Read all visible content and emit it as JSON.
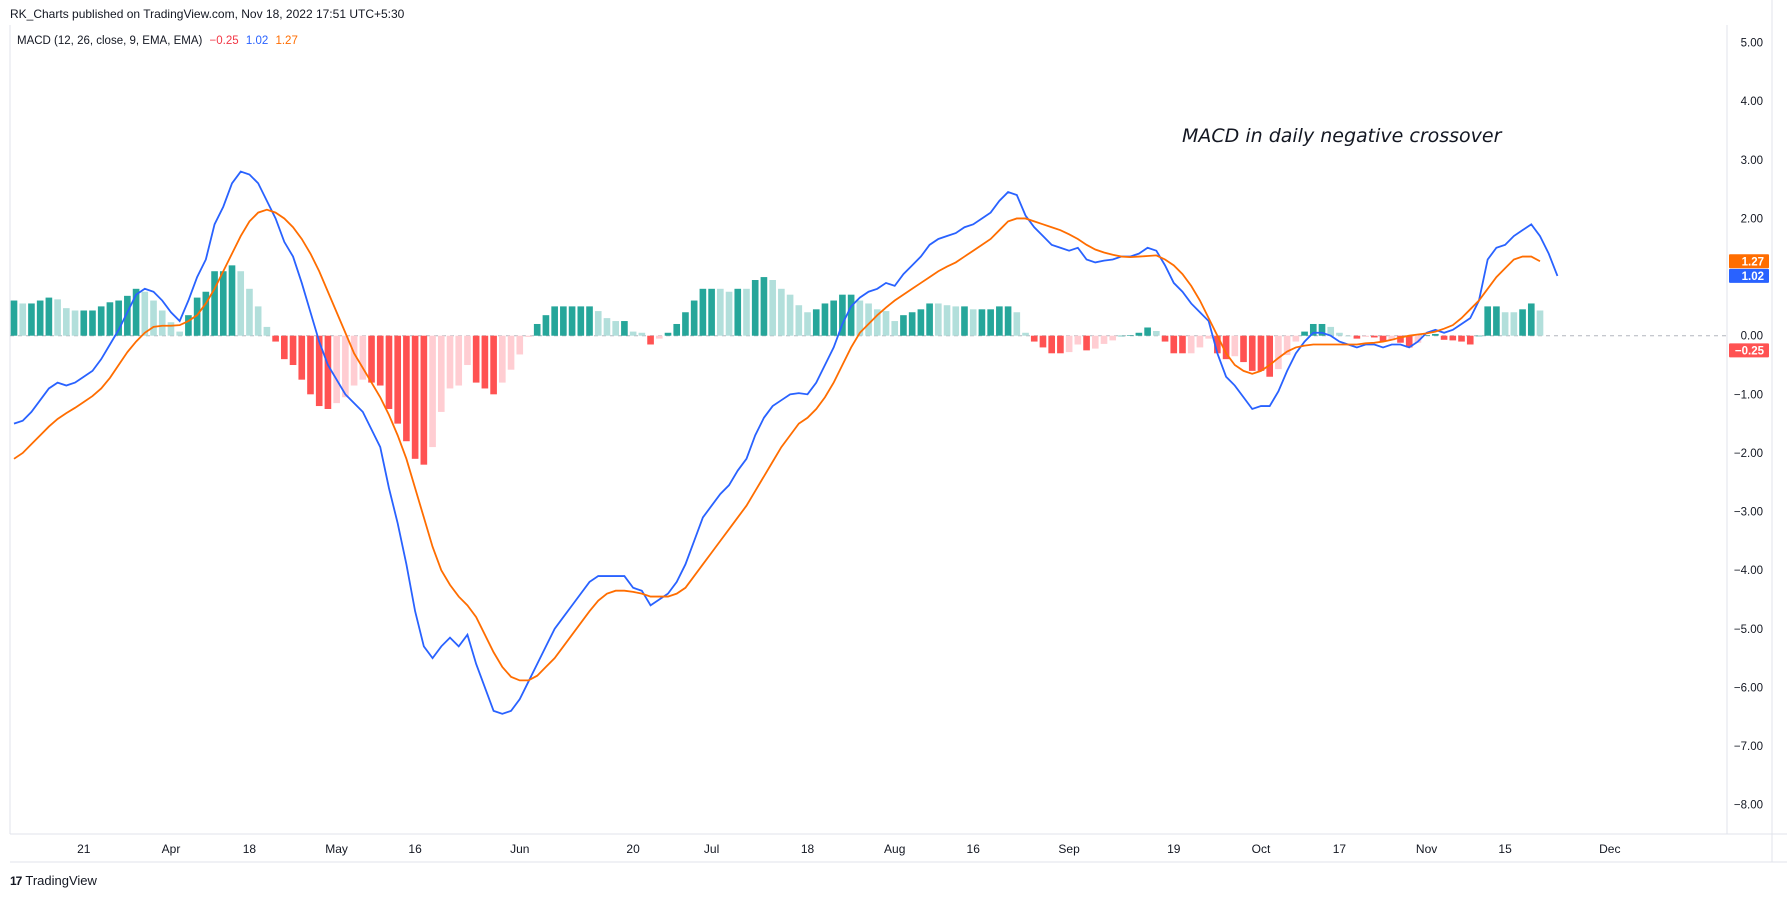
{
  "header": {
    "publisher": "RK_Charts published on TradingView.com, Nov 18, 2022 17:51 UTC+5:30"
  },
  "legend": {
    "indicator": "MACD (12, 26, close, 9, EMA, EMA)",
    "histogram_value": "−0.25",
    "macd_value": "1.02",
    "signal_value": "1.27"
  },
  "annotation": "MACD in daily negative crossover",
  "footer": {
    "brand": "TradingView",
    "logo": "tradingview-logo-icon"
  },
  "colors": {
    "macd": "#2962ff",
    "signal": "#ff6d00",
    "hist_pos_strong": "#26a69a",
    "hist_pos_weak": "#b2dfdb",
    "hist_neg_strong": "#ff5252",
    "hist_neg_weak": "#ffcdd2"
  },
  "chart_data": {
    "type": "line",
    "ylim": [
      -8.5,
      5.3
    ],
    "y_ticks": [
      "5.00",
      "4.00",
      "3.00",
      "2.00",
      "1.00",
      "0.00",
      "−1.00",
      "−2.00",
      "−3.00",
      "−4.00",
      "−5.00",
      "−6.00",
      "−7.00",
      "−8.00"
    ],
    "x_tick_labels": [
      {
        "label": "21",
        "bar": 8
      },
      {
        "label": "Apr",
        "bar": 18
      },
      {
        "label": "18",
        "bar": 27
      },
      {
        "label": "May",
        "bar": 37
      },
      {
        "label": "16",
        "bar": 46
      },
      {
        "label": "Jun",
        "bar": 58
      },
      {
        "label": "20",
        "bar": 71
      },
      {
        "label": "Jul",
        "bar": 80
      },
      {
        "label": "18",
        "bar": 91
      },
      {
        "label": "Aug",
        "bar": 101
      },
      {
        "label": "16",
        "bar": 110
      },
      {
        "label": "Sep",
        "bar": 121
      },
      {
        "label": "19",
        "bar": 133
      },
      {
        "label": "Oct",
        "bar": 143
      },
      {
        "label": "17",
        "bar": 152
      },
      {
        "label": "Nov",
        "bar": 162
      },
      {
        "label": "15",
        "bar": 171
      },
      {
        "label": "Dec",
        "bar": 183
      }
    ],
    "price_badges": [
      {
        "label": "1.27",
        "value": 1.27,
        "color": "#ff6d00"
      },
      {
        "label": "1.02",
        "value": 1.02,
        "color": "#2962ff"
      },
      {
        "label": "−0.25",
        "value": -0.25,
        "color": "#ff5252"
      }
    ],
    "series": [
      {
        "name": "MACD",
        "values": [
          -1.5,
          -1.45,
          -1.3,
          -1.1,
          -0.9,
          -0.8,
          -0.85,
          -0.8,
          -0.7,
          -0.6,
          -0.4,
          -0.15,
          0.1,
          0.4,
          0.7,
          0.8,
          0.75,
          0.6,
          0.4,
          0.25,
          0.6,
          1.0,
          1.3,
          1.9,
          2.2,
          2.6,
          2.8,
          2.75,
          2.6,
          2.3,
          2.0,
          1.6,
          1.35,
          0.9,
          0.4,
          -0.1,
          -0.5,
          -0.75,
          -1.0,
          -1.15,
          -1.3,
          -1.6,
          -1.9,
          -2.6,
          -3.2,
          -3.9,
          -4.7,
          -5.3,
          -5.5,
          -5.3,
          -5.15,
          -5.3,
          -5.1,
          -5.6,
          -6.0,
          -6.4,
          -6.45,
          -6.4,
          -6.2,
          -5.9,
          -5.6,
          -5.3,
          -5.0,
          -4.8,
          -4.6,
          -4.4,
          -4.2,
          -4.1,
          -4.1,
          -4.1,
          -4.1,
          -4.3,
          -4.35,
          -4.6,
          -4.5,
          -4.4,
          -4.2,
          -3.9,
          -3.5,
          -3.1,
          -2.9,
          -2.7,
          -2.55,
          -2.3,
          -2.1,
          -1.7,
          -1.4,
          -1.2,
          -1.1,
          -1.0,
          -0.98,
          -1.0,
          -0.8,
          -0.5,
          -0.2,
          0.2,
          0.5,
          0.65,
          0.75,
          0.8,
          0.9,
          0.85,
          1.05,
          1.2,
          1.35,
          1.55,
          1.65,
          1.7,
          1.75,
          1.85,
          1.9,
          2.0,
          2.1,
          2.3,
          2.45,
          2.4,
          2.05,
          1.85,
          1.7,
          1.55,
          1.5,
          1.45,
          1.5,
          1.3,
          1.25,
          1.28,
          1.3,
          1.35,
          1.35,
          1.4,
          1.5,
          1.45,
          1.2,
          0.9,
          0.75,
          0.55,
          0.4,
          0.25,
          -0.3,
          -0.7,
          -0.85,
          -1.05,
          -1.25,
          -1.2,
          -1.2,
          -0.95,
          -0.6,
          -0.3,
          -0.1,
          0.05,
          0.05,
          0.0,
          -0.1,
          -0.15,
          -0.2,
          -0.15,
          -0.15,
          -0.2,
          -0.15,
          -0.15,
          -0.2,
          -0.1,
          0.05,
          0.1,
          0.05,
          0.1,
          0.2,
          0.3,
          0.6,
          1.3,
          1.5,
          1.55,
          1.7,
          1.8,
          1.9,
          1.7,
          1.4,
          1.02
        ]
      },
      {
        "name": "Signal",
        "values": [
          -2.1,
          -2.0,
          -1.85,
          -1.7,
          -1.55,
          -1.42,
          -1.32,
          -1.23,
          -1.13,
          -1.03,
          -0.9,
          -0.72,
          -0.5,
          -0.28,
          -0.1,
          0.05,
          0.15,
          0.17,
          0.17,
          0.18,
          0.25,
          0.35,
          0.55,
          0.8,
          1.1,
          1.4,
          1.7,
          1.95,
          2.1,
          2.15,
          2.1,
          2.0,
          1.85,
          1.65,
          1.4,
          1.1,
          0.75,
          0.4,
          0.05,
          -0.3,
          -0.55,
          -0.8,
          -1.05,
          -1.35,
          -1.7,
          -2.1,
          -2.6,
          -3.1,
          -3.6,
          -4.0,
          -4.25,
          -4.45,
          -4.6,
          -4.8,
          -5.1,
          -5.4,
          -5.65,
          -5.82,
          -5.88,
          -5.88,
          -5.8,
          -5.65,
          -5.5,
          -5.3,
          -5.1,
          -4.9,
          -4.7,
          -4.52,
          -4.4,
          -4.35,
          -4.35,
          -4.37,
          -4.4,
          -4.45,
          -4.45,
          -4.45,
          -4.4,
          -4.3,
          -4.1,
          -3.9,
          -3.7,
          -3.5,
          -3.3,
          -3.1,
          -2.9,
          -2.65,
          -2.4,
          -2.15,
          -1.9,
          -1.7,
          -1.5,
          -1.4,
          -1.25,
          -1.05,
          -0.8,
          -0.5,
          -0.2,
          0.05,
          0.2,
          0.35,
          0.48,
          0.6,
          0.7,
          0.8,
          0.9,
          1.0,
          1.1,
          1.18,
          1.25,
          1.35,
          1.45,
          1.55,
          1.65,
          1.8,
          1.95,
          2.0,
          2.0,
          1.95,
          1.9,
          1.85,
          1.8,
          1.73,
          1.65,
          1.55,
          1.47,
          1.42,
          1.38,
          1.35,
          1.34,
          1.35,
          1.36,
          1.37,
          1.3,
          1.2,
          1.05,
          0.85,
          0.6,
          0.3,
          0.0,
          -0.3,
          -0.5,
          -0.6,
          -0.65,
          -0.6,
          -0.5,
          -0.38,
          -0.27,
          -0.2,
          -0.17,
          -0.15,
          -0.15,
          -0.15,
          -0.15,
          -0.15,
          -0.15,
          -0.13,
          -0.12,
          -0.1,
          -0.07,
          -0.03,
          0.0,
          0.02,
          0.04,
          0.07,
          0.12,
          0.18,
          0.3,
          0.45,
          0.6,
          0.8,
          1.0,
          1.15,
          1.3,
          1.35,
          1.35,
          1.27
        ]
      }
    ]
  }
}
